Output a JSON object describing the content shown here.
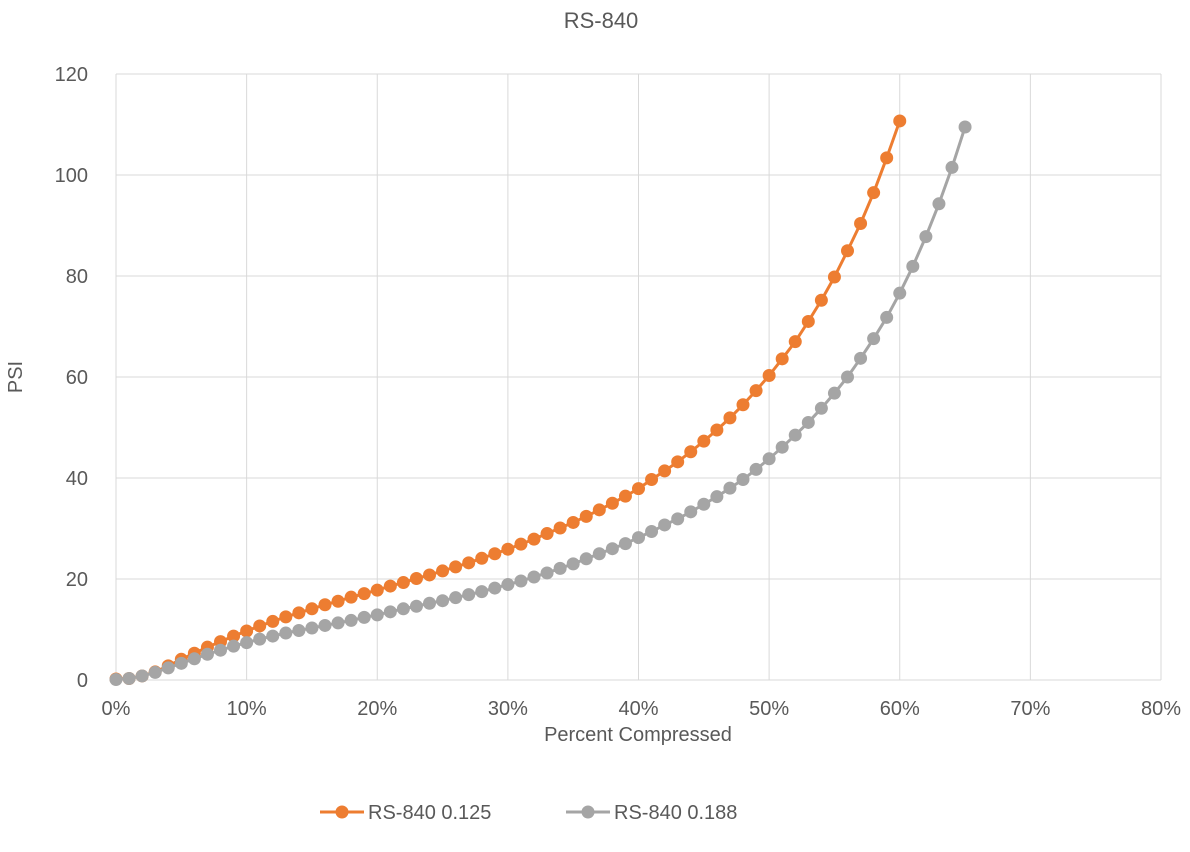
{
  "chart_data": {
    "type": "line",
    "title": "RS-840",
    "xlabel": "Percent Compressed",
    "ylabel": "PSI",
    "xlim": [
      0,
      80
    ],
    "ylim": [
      0,
      120
    ],
    "x_ticks": [
      0,
      10,
      20,
      30,
      40,
      50,
      60,
      70,
      80
    ],
    "x_tick_labels": [
      "0%",
      "10%",
      "20%",
      "30%",
      "40%",
      "50%",
      "60%",
      "70%",
      "80%"
    ],
    "y_ticks": [
      0,
      20,
      40,
      60,
      80,
      100,
      120
    ],
    "y_tick_labels": [
      "0",
      "20",
      "40",
      "60",
      "80",
      "100",
      "120"
    ],
    "grid": true,
    "legend_position": "bottom",
    "series": [
      {
        "name": "RS-840 0.125",
        "color": "#ed7d31",
        "x": [
          0,
          1,
          2,
          3,
          4,
          5,
          6,
          7,
          8,
          9,
          10,
          11,
          12,
          13,
          14,
          15,
          16,
          17,
          18,
          19,
          20,
          21,
          22,
          23,
          24,
          25,
          26,
          27,
          28,
          29,
          30,
          31,
          32,
          33,
          34,
          35,
          36,
          37,
          38,
          39,
          40,
          41,
          42,
          43,
          44,
          45,
          46,
          47,
          48,
          49,
          50,
          51,
          52,
          53,
          54,
          55,
          56,
          57,
          58,
          59,
          60
        ],
        "values": [
          0.2,
          0.3,
          0.8,
          1.6,
          2.8,
          4.1,
          5.3,
          6.5,
          7.6,
          8.7,
          9.7,
          10.7,
          11.6,
          12.5,
          13.3,
          14.1,
          14.9,
          15.6,
          16.4,
          17.1,
          17.8,
          18.6,
          19.3,
          20.1,
          20.8,
          21.6,
          22.4,
          23.2,
          24.1,
          25.0,
          25.9,
          26.9,
          27.9,
          29.0,
          30.1,
          31.2,
          32.4,
          33.7,
          35.0,
          36.4,
          37.9,
          39.7,
          41.4,
          43.2,
          45.2,
          47.3,
          49.5,
          51.9,
          54.5,
          57.3,
          60.3,
          63.6,
          67.0,
          71.0,
          75.2,
          79.8,
          85.0,
          90.4,
          96.5,
          103.4,
          110.7
        ]
      },
      {
        "name": "RS-840 0.188",
        "color": "#a5a5a5",
        "x": [
          0,
          1,
          2,
          3,
          4,
          5,
          6,
          7,
          8,
          9,
          10,
          11,
          12,
          13,
          14,
          15,
          16,
          17,
          18,
          19,
          20,
          21,
          22,
          23,
          24,
          25,
          26,
          27,
          28,
          29,
          30,
          31,
          32,
          33,
          34,
          35,
          36,
          37,
          38,
          39,
          40,
          41,
          42,
          43,
          44,
          45,
          46,
          47,
          48,
          49,
          50,
          51,
          52,
          53,
          54,
          55,
          56,
          57,
          58,
          59,
          60,
          61,
          62,
          63,
          64,
          65
        ],
        "values": [
          0.1,
          0.3,
          0.8,
          1.5,
          2.4,
          3.3,
          4.2,
          5.1,
          5.9,
          6.7,
          7.4,
          8.1,
          8.7,
          9.3,
          9.8,
          10.3,
          10.8,
          11.3,
          11.8,
          12.4,
          12.9,
          13.5,
          14.1,
          14.6,
          15.2,
          15.7,
          16.3,
          16.9,
          17.5,
          18.2,
          18.9,
          19.6,
          20.4,
          21.2,
          22.1,
          23.0,
          24.0,
          25.0,
          26.0,
          27.0,
          28.2,
          29.4,
          30.7,
          31.9,
          33.3,
          34.8,
          36.3,
          38.0,
          39.7,
          41.7,
          43.8,
          46.1,
          48.5,
          51.0,
          53.8,
          56.8,
          60.0,
          63.7,
          67.6,
          71.8,
          76.6,
          81.9,
          87.8,
          94.3,
          101.5,
          109.5
        ]
      }
    ]
  }
}
